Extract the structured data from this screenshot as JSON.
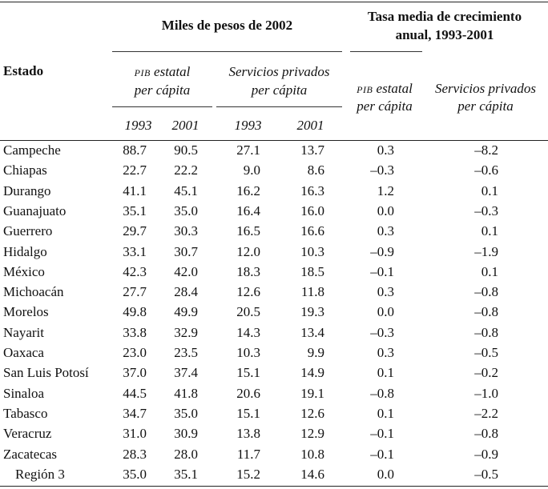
{
  "header": {
    "estado": "Estado",
    "group1": "Miles de pesos de 2002",
    "group2_line1": "Tasa media de crecimiento",
    "group2_line2": "anual, 1993-2001",
    "pib_prefix": "PIB",
    "pib_suffix": " estatal",
    "per_capita": "per cápita",
    "serv_line1": "Servicios privados",
    "year1": "1993",
    "year2": "2001"
  },
  "rows": [
    {
      "estado": "Campeche",
      "pib1993": "88.7",
      "pib2001": "90.5",
      "serv1993": "27.1",
      "serv2001": "13.7",
      "tasa_pib": "0.3",
      "tasa_serv": "–8.2"
    },
    {
      "estado": "Chiapas",
      "pib1993": "22.7",
      "pib2001": "22.2",
      "serv1993": "9.0",
      "serv2001": "8.6",
      "tasa_pib": "–0.3",
      "tasa_serv": "–0.6"
    },
    {
      "estado": "Durango",
      "pib1993": "41.1",
      "pib2001": "45.1",
      "serv1993": "16.2",
      "serv2001": "16.3",
      "tasa_pib": "1.2",
      "tasa_serv": "0.1"
    },
    {
      "estado": "Guanajuato",
      "pib1993": "35.1",
      "pib2001": "35.0",
      "serv1993": "16.4",
      "serv2001": "16.0",
      "tasa_pib": "0.0",
      "tasa_serv": "–0.3"
    },
    {
      "estado": "Guerrero",
      "pib1993": "29.7",
      "pib2001": "30.3",
      "serv1993": "16.5",
      "serv2001": "16.6",
      "tasa_pib": "0.3",
      "tasa_serv": "0.1"
    },
    {
      "estado": "Hidalgo",
      "pib1993": "33.1",
      "pib2001": "30.7",
      "serv1993": "12.0",
      "serv2001": "10.3",
      "tasa_pib": "–0.9",
      "tasa_serv": "–1.9"
    },
    {
      "estado": "México",
      "pib1993": "42.3",
      "pib2001": "42.0",
      "serv1993": "18.3",
      "serv2001": "18.5",
      "tasa_pib": "–0.1",
      "tasa_serv": "0.1"
    },
    {
      "estado": "Michoacán",
      "pib1993": "27.7",
      "pib2001": "28.4",
      "serv1993": "12.6",
      "serv2001": "11.8",
      "tasa_pib": "0.3",
      "tasa_serv": "–0.8"
    },
    {
      "estado": "Morelos",
      "pib1993": "49.8",
      "pib2001": "49.9",
      "serv1993": "20.5",
      "serv2001": "19.3",
      "tasa_pib": "0.0",
      "tasa_serv": "–0.8"
    },
    {
      "estado": "Nayarit",
      "pib1993": "33.8",
      "pib2001": "32.9",
      "serv1993": "14.3",
      "serv2001": "13.4",
      "tasa_pib": "–0.3",
      "tasa_serv": "–0.8"
    },
    {
      "estado": "Oaxaca",
      "pib1993": "23.0",
      "pib2001": "23.5",
      "serv1993": "10.3",
      "serv2001": "9.9",
      "tasa_pib": "0.3",
      "tasa_serv": "–0.5"
    },
    {
      "estado": "San Luis Potosí",
      "pib1993": "37.0",
      "pib2001": "37.4",
      "serv1993": "15.1",
      "serv2001": "14.9",
      "tasa_pib": "0.1",
      "tasa_serv": "–0.2"
    },
    {
      "estado": "Sinaloa",
      "pib1993": "44.5",
      "pib2001": "41.8",
      "serv1993": "20.6",
      "serv2001": "19.1",
      "tasa_pib": "–0.8",
      "tasa_serv": "–1.0"
    },
    {
      "estado": "Tabasco",
      "pib1993": "34.7",
      "pib2001": "35.0",
      "serv1993": "15.1",
      "serv2001": "12.6",
      "tasa_pib": "0.1",
      "tasa_serv": "–2.2"
    },
    {
      "estado": "Veracruz",
      "pib1993": "31.0",
      "pib2001": "30.9",
      "serv1993": "13.8",
      "serv2001": "12.9",
      "tasa_pib": "–0.1",
      "tasa_serv": "–0.8"
    },
    {
      "estado": "Zacatecas",
      "pib1993": "28.3",
      "pib2001": "28.0",
      "serv1993": "11.7",
      "serv2001": "10.8",
      "tasa_pib": "–0.1",
      "tasa_serv": "–0.9"
    },
    {
      "estado": "Región 3",
      "pib1993": "35.0",
      "pib2001": "35.1",
      "serv1993": "15.2",
      "serv2001": "14.6",
      "tasa_pib": "0.0",
      "tasa_serv": "–0.5"
    }
  ]
}
